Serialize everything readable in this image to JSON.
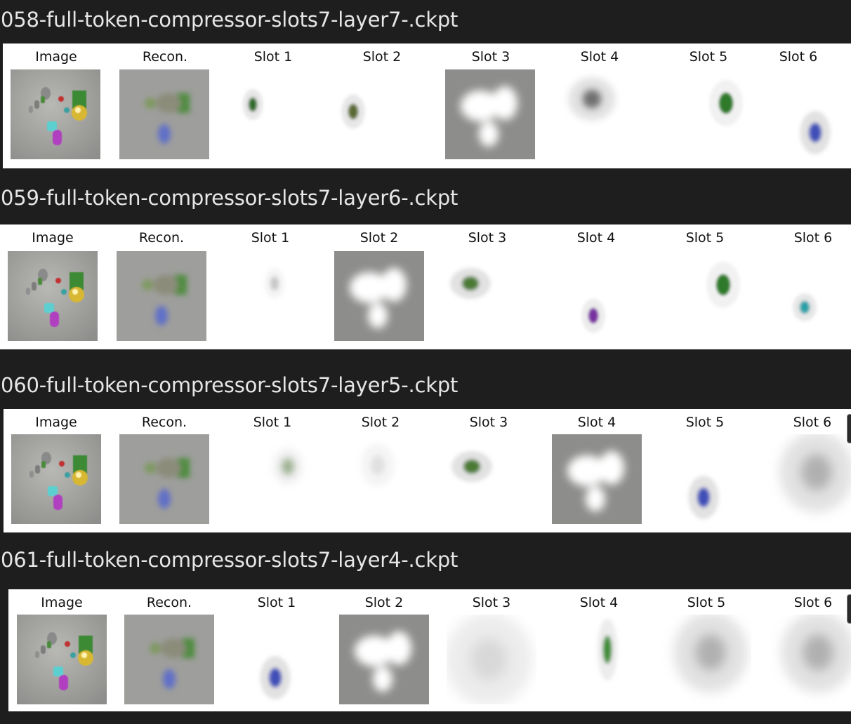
{
  "sections": [
    {
      "title": "058-full-token-compressor-slots7-layer7-.ckpt",
      "labels": [
        "Image",
        "Recon.",
        "Slot 1",
        "Slot 2",
        "Slot 3",
        "Slot 4",
        "Slot 5",
        "Slot 6"
      ],
      "slot_content": [
        "image",
        "recon",
        "green-blob",
        "olive-blob",
        "background",
        "gray-blob",
        "green-cylinder",
        "blue-blob"
      ]
    },
    {
      "title": "059-full-token-compressor-slots7-layer6-.ckpt",
      "labels": [
        "Image",
        "Recon.",
        "Slot 1",
        "Slot 2",
        "Slot 3",
        "Slot 4",
        "Slot 5",
        "Slot 6"
      ],
      "slot_content": [
        "image",
        "recon",
        "faint-gray",
        "background",
        "green-pair",
        "purple-blob",
        "green-cylinder",
        "cyan-blob"
      ]
    },
    {
      "title": "060-full-token-compressor-slots7-layer5-.ckpt",
      "labels": [
        "Image",
        "Recon.",
        "Slot 1",
        "Slot 2",
        "Slot 3",
        "Slot 4",
        "Slot 5",
        "Slot 6"
      ],
      "slot_content": [
        "image",
        "recon",
        "faint-green",
        "very-faint",
        "green-pair",
        "background",
        "blue-blob",
        "gray-cloud"
      ]
    },
    {
      "title": "061-full-token-compressor-slots7-layer4-.ckpt",
      "labels": [
        "Image",
        "Recon.",
        "Slot 1",
        "Slot 2",
        "Slot 3",
        "Slot 4",
        "Slot 5",
        "Slot 6"
      ],
      "slot_content": [
        "image",
        "recon",
        "blue-blob",
        "background",
        "faint-cloud",
        "green-streak",
        "gray-cloud",
        "gray-cloud"
      ]
    }
  ]
}
